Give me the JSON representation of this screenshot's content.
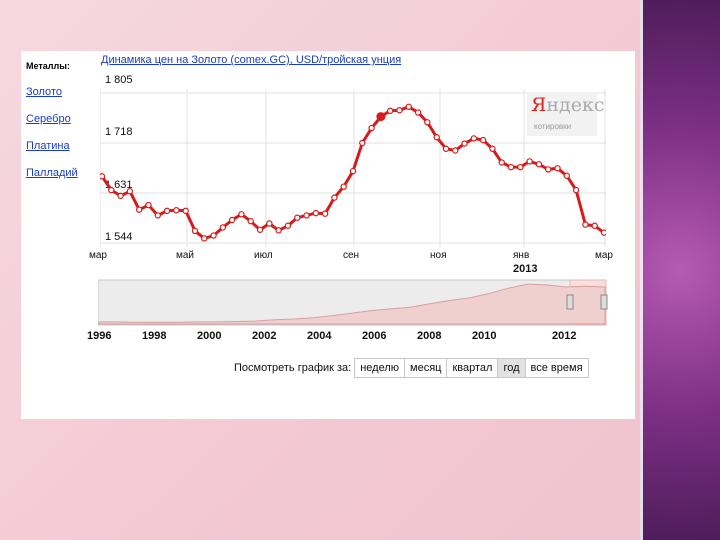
{
  "metals": {
    "header": "Металлы:",
    "items": [
      "Золото",
      "Серебро",
      "Платина",
      "Палладий"
    ]
  },
  "chart_data": {
    "type": "line",
    "title": "Динамика цен на Золото (comex.GC), USD/тройская унция",
    "xlabel": "",
    "ylabel": "",
    "y_ticks": [
      "1 805",
      "1 718",
      "1 631",
      "1 544"
    ],
    "ylim": [
      1544,
      1805
    ],
    "x_ticks": [
      "мар",
      "май",
      "июл",
      "сен",
      "ноя",
      "янв",
      "мар"
    ],
    "x_sub_label": "2013",
    "series": [
      {
        "values": [
          1660,
          1636,
          1626,
          1634,
          1602,
          1610,
          1592,
          1600,
          1601,
          1600,
          1565,
          1552,
          1557,
          1571,
          1584,
          1594,
          1582,
          1567,
          1578,
          1566,
          1574,
          1588,
          1592,
          1596,
          1595,
          1623,
          1642,
          1669,
          1718,
          1744,
          1764,
          1774,
          1775,
          1781,
          1771,
          1754,
          1728,
          1708,
          1705,
          1717,
          1726,
          1723,
          1708,
          1684,
          1676,
          1676,
          1686,
          1681,
          1672,
          1674,
          1661,
          1636,
          1576,
          1574,
          1562
        ]
      }
    ],
    "highlight_index": 30,
    "grid": true,
    "legend": "none",
    "line_color": "#d71b1b"
  },
  "navigator": {
    "years": [
      "1996",
      "1998",
      "2000",
      "2002",
      "2004",
      "2006",
      "2008",
      "2010",
      "2012"
    ],
    "values": [
      0.05,
      0.05,
      0.04,
      0.04,
      0.04,
      0.05,
      0.05,
      0.06,
      0.07,
      0.1,
      0.12,
      0.15,
      0.2,
      0.26,
      0.32,
      0.36,
      0.4,
      0.48,
      0.56,
      0.62,
      0.72,
      0.85,
      0.95,
      0.93,
      0.88,
      0.9,
      0.88
    ]
  },
  "period_selector": {
    "label": "Посмотреть график за:",
    "buttons": [
      "неделю",
      "месяц",
      "квартал",
      "год",
      "все время"
    ],
    "active": "год"
  },
  "logo": {
    "brand": "Яндекс",
    "sub": "котировки"
  }
}
